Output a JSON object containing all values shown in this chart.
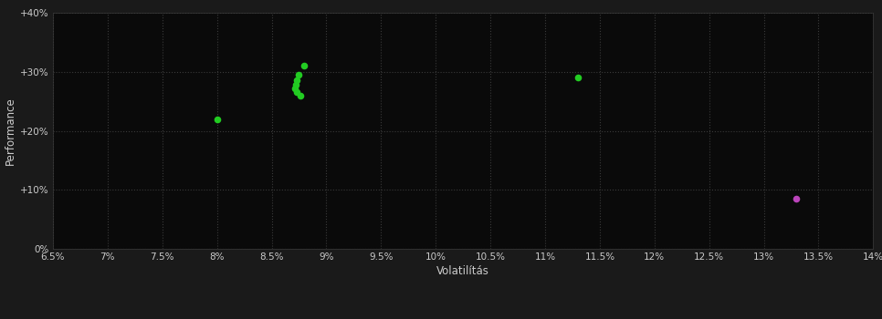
{
  "background_color": "#1a1a1a",
  "plot_bg_color": "#0a0a0a",
  "grid_color": "#3a3a3a",
  "text_color": "#cccccc",
  "xlabel": "Volatilítás",
  "ylabel": "Performance",
  "xlim": [
    0.065,
    0.14
  ],
  "ylim": [
    0.0,
    0.4
  ],
  "xticks": [
    0.065,
    0.07,
    0.075,
    0.08,
    0.085,
    0.09,
    0.095,
    0.1,
    0.105,
    0.11,
    0.115,
    0.12,
    0.125,
    0.13,
    0.135,
    0.14
  ],
  "yticks": [
    0.0,
    0.1,
    0.2,
    0.3,
    0.4
  ],
  "green_points": [
    [
      0.08,
      0.22
    ],
    [
      0.088,
      0.31
    ],
    [
      0.0875,
      0.295
    ],
    [
      0.0873,
      0.285
    ],
    [
      0.0872,
      0.278
    ],
    [
      0.0871,
      0.272
    ],
    [
      0.0873,
      0.265
    ],
    [
      0.0876,
      0.26
    ],
    [
      0.113,
      0.29
    ]
  ],
  "magenta_points": [
    [
      0.133,
      0.085
    ]
  ],
  "green_color": "#22cc22",
  "magenta_color": "#bb44bb",
  "marker_size": 30
}
